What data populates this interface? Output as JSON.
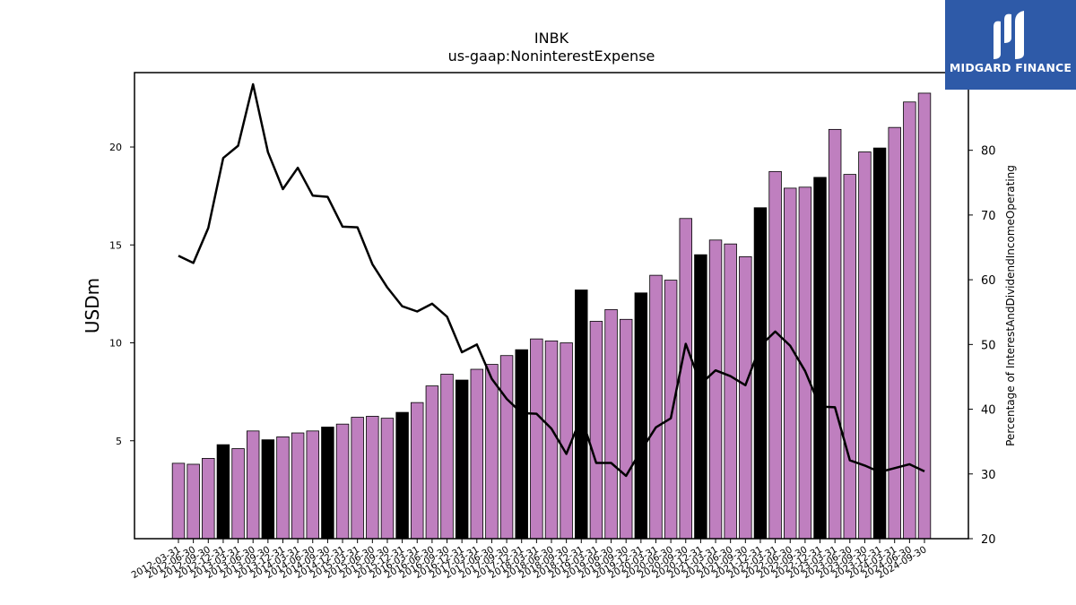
{
  "brand": {
    "name": "MIDGARD FINANCE",
    "color": "#2e5aa8"
  },
  "chart_data": {
    "type": "bar",
    "title": "INBK",
    "subtitle": "us-gaap:NoninterestExpense",
    "ylabel": "USDm",
    "y2label": "Percentage of InterestAndDividendIncomeOperating",
    "ylim": [
      0,
      23.8
    ],
    "y2lim": [
      20,
      92
    ],
    "yticks": [
      5,
      10,
      15,
      20
    ],
    "y2ticks": [
      20,
      30,
      40,
      50,
      60,
      70,
      80
    ],
    "grid": false,
    "categories": [
      "2012-03-31",
      "2012-06-30",
      "2012-09-30",
      "2012-12-31",
      "2013-03-31",
      "2013-06-30",
      "2013-09-30",
      "2013-12-31",
      "2014-03-31",
      "2014-06-30",
      "2014-09-30",
      "2014-12-31",
      "2015-03-31",
      "2015-06-30",
      "2015-09-30",
      "2015-12-31",
      "2016-03-31",
      "2016-06-30",
      "2016-09-30",
      "2016-12-31",
      "2017-03-31",
      "2017-06-30",
      "2017-09-30",
      "2017-12-31",
      "2018-03-31",
      "2018-06-30",
      "2018-09-30",
      "2018-12-31",
      "2019-03-31",
      "2019-06-30",
      "2019-09-30",
      "2019-12-31",
      "2020-03-31",
      "2020-06-30",
      "2020-09-30",
      "2020-12-31",
      "2021-03-31",
      "2021-06-30",
      "2021-09-30",
      "2021-12-31",
      "2022-03-31",
      "2022-06-30",
      "2022-09-30",
      "2022-12-31",
      "2023-03-31",
      "2023-06-30",
      "2023-09-30",
      "2023-12-31",
      "2024-03-31",
      "2024-06-30",
      "2024-09-30"
    ],
    "series": [
      {
        "kind": "bar",
        "values": [
          3.85,
          3.8,
          4.1,
          4.8,
          4.6,
          5.5,
          5.05,
          5.2,
          5.4,
          5.5,
          5.7,
          5.85,
          6.2,
          6.25,
          6.15,
          6.45,
          6.95,
          7.8,
          8.4,
          8.1,
          8.65,
          8.9,
          9.35,
          9.65,
          10.2,
          10.1,
          10.0,
          12.7,
          11.1,
          11.7,
          11.2,
          12.55,
          13.45,
          13.2,
          16.35,
          14.5,
          15.25,
          15.05,
          14.4,
          16.9,
          18.75,
          17.9,
          17.95,
          18.45,
          20.9,
          18.6,
          19.75,
          19.95,
          21.0,
          22.3,
          22.75
        ],
        "highlight": [
          false,
          false,
          false,
          true,
          false,
          false,
          true,
          false,
          false,
          false,
          true,
          false,
          false,
          false,
          false,
          true,
          false,
          false,
          false,
          true,
          false,
          false,
          false,
          true,
          false,
          false,
          false,
          true,
          false,
          false,
          false,
          true,
          false,
          false,
          false,
          true,
          false,
          false,
          false,
          true,
          false,
          false,
          false,
          true,
          false,
          false,
          false,
          true,
          false,
          false,
          false
        ]
      },
      {
        "kind": "line",
        "axis": "right",
        "values": [
          63.7,
          62.6,
          68.0,
          78.8,
          80.7,
          90.2,
          79.7,
          74.0,
          77.3,
          73.0,
          72.8,
          68.2,
          68.1,
          62.4,
          58.8,
          55.9,
          55.1,
          56.3,
          54.3,
          48.8,
          50.0,
          44.7,
          41.6,
          39.4,
          39.3,
          37.0,
          33.1,
          38.8,
          31.7,
          31.7,
          29.7,
          33.6,
          37.2,
          38.6,
          50.1,
          43.9,
          46.0,
          45.1,
          43.7,
          49.8,
          52.0,
          49.8,
          45.9,
          40.4,
          40.3,
          32.1,
          31.3,
          30.3,
          30.9,
          31.5,
          30.4
        ]
      }
    ],
    "colors": {
      "bar": "#bf7fbf",
      "bar_highlight": "#000000",
      "line": "#000000"
    }
  }
}
